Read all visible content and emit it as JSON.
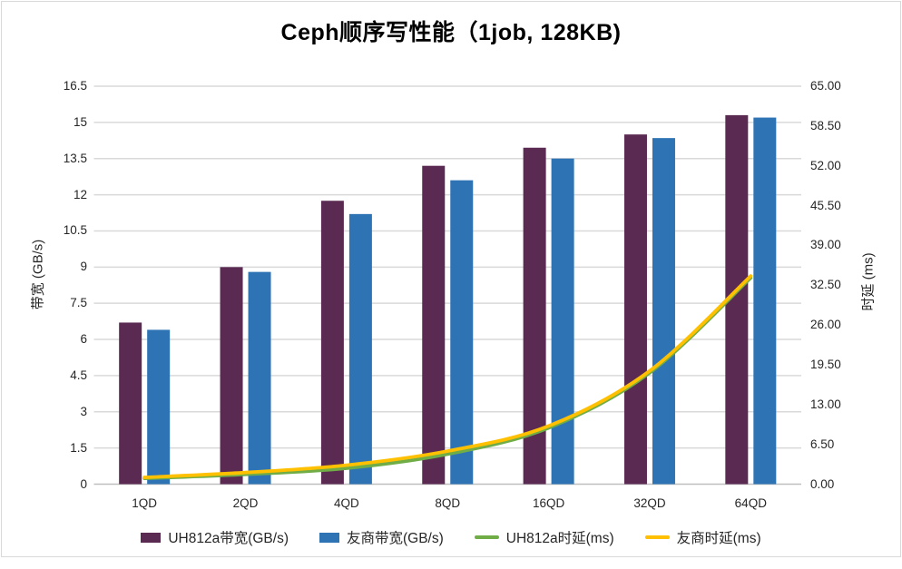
{
  "title": "Ceph顺序写性能（1job, 128KB)",
  "chart_data": {
    "type": "combo-bar-line",
    "categories": [
      "1QD",
      "2QD",
      "4QD",
      "8QD",
      "16QD",
      "32QD",
      "64QD"
    ],
    "series": [
      {
        "name": "UH812a带宽(GB/s)",
        "type": "bar",
        "axis": "left",
        "color": "#5B2A52",
        "values": [
          6.7,
          9.0,
          11.75,
          13.2,
          13.95,
          14.5,
          15.3
        ]
      },
      {
        "name": "友商带宽(GB/s)",
        "type": "bar",
        "axis": "left",
        "color": "#2E74B5",
        "values": [
          6.4,
          8.8,
          11.2,
          12.6,
          13.5,
          14.35,
          15.2
        ]
      },
      {
        "name": "UH812a时延(ms)",
        "type": "line",
        "axis": "right",
        "color": "#70AD47",
        "values": [
          0.95,
          1.6,
          2.6,
          4.9,
          9.2,
          18.2,
          33.7
        ]
      },
      {
        "name": "友商时延(ms)",
        "type": "line",
        "axis": "right",
        "color": "#FFC000",
        "values": [
          1.1,
          1.9,
          3.1,
          5.4,
          9.5,
          18.5,
          34.0
        ]
      }
    ],
    "left_axis": {
      "title": "带宽 (GB/s)",
      "min": 0,
      "max": 16.5,
      "tick_labels": [
        "0",
        "1.5",
        "3",
        "4.5",
        "6",
        "7.5",
        "9",
        "10.5",
        "12",
        "13.5",
        "15",
        "16.5"
      ]
    },
    "right_axis": {
      "title": "时延 (ms)",
      "min": 0,
      "max": 65,
      "tick_labels": [
        "0.00",
        "6.50",
        "13.00",
        "19.50",
        "26.00",
        "32.50",
        "39.00",
        "45.50",
        "52.00",
        "58.50",
        "65.00"
      ]
    },
    "x_axis": {
      "tick_labels": [
        "1QD",
        "2QD",
        "4QD",
        "8QD",
        "16QD",
        "32QD",
        "64QD"
      ]
    },
    "grid": true,
    "legend_position": "bottom",
    "colors": {
      "gridline": "#D9D9D9",
      "axis_line": "#BFBFBF",
      "text": "#262626",
      "frame_border": "#D9D9D9"
    }
  }
}
